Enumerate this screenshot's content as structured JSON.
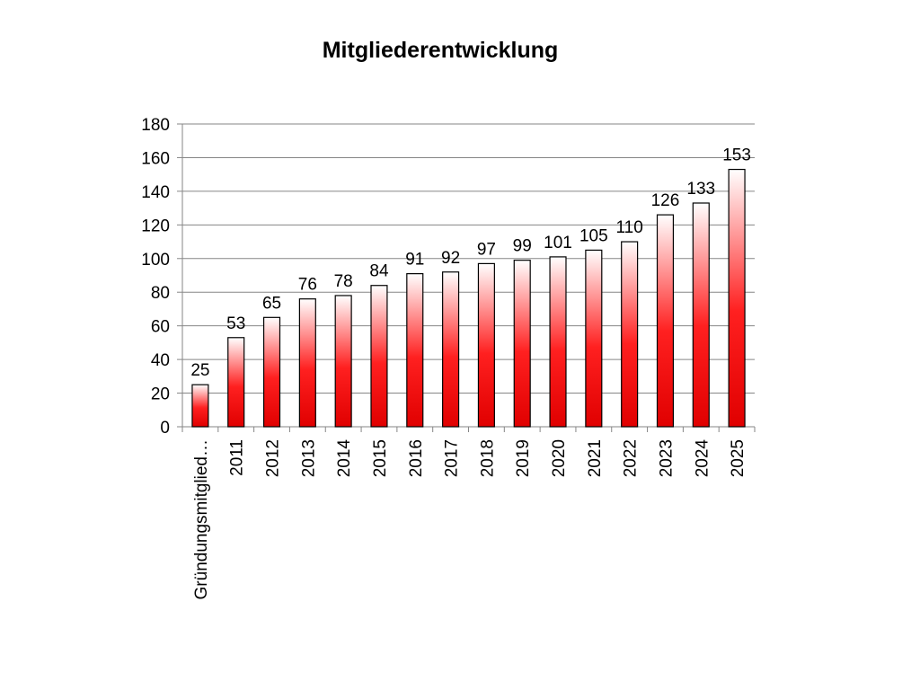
{
  "chart_data": {
    "type": "bar",
    "title": "Mitgliederentwicklung",
    "xlabel": "",
    "ylabel": "",
    "categories": [
      "Gründungsmitglied…",
      "2011",
      "2012",
      "2013",
      "2014",
      "2015",
      "2016",
      "2017",
      "2018",
      "2019",
      "2020",
      "2021",
      "2022",
      "2023",
      "2024",
      "2025"
    ],
    "values": [
      25,
      53,
      65,
      76,
      78,
      84,
      91,
      92,
      97,
      99,
      101,
      105,
      110,
      126,
      133,
      153
    ],
    "ylim": [
      0,
      180
    ],
    "yticks": [
      0,
      20,
      40,
      60,
      80,
      100,
      120,
      140,
      160,
      180
    ],
    "grid": true,
    "legend": "none",
    "colors": {
      "bar_top": "#ffffff",
      "bar_mid": "#ff0000",
      "bar_bottom": "#e00000",
      "bar_outline": "#000000",
      "grid": "#868686"
    }
  }
}
